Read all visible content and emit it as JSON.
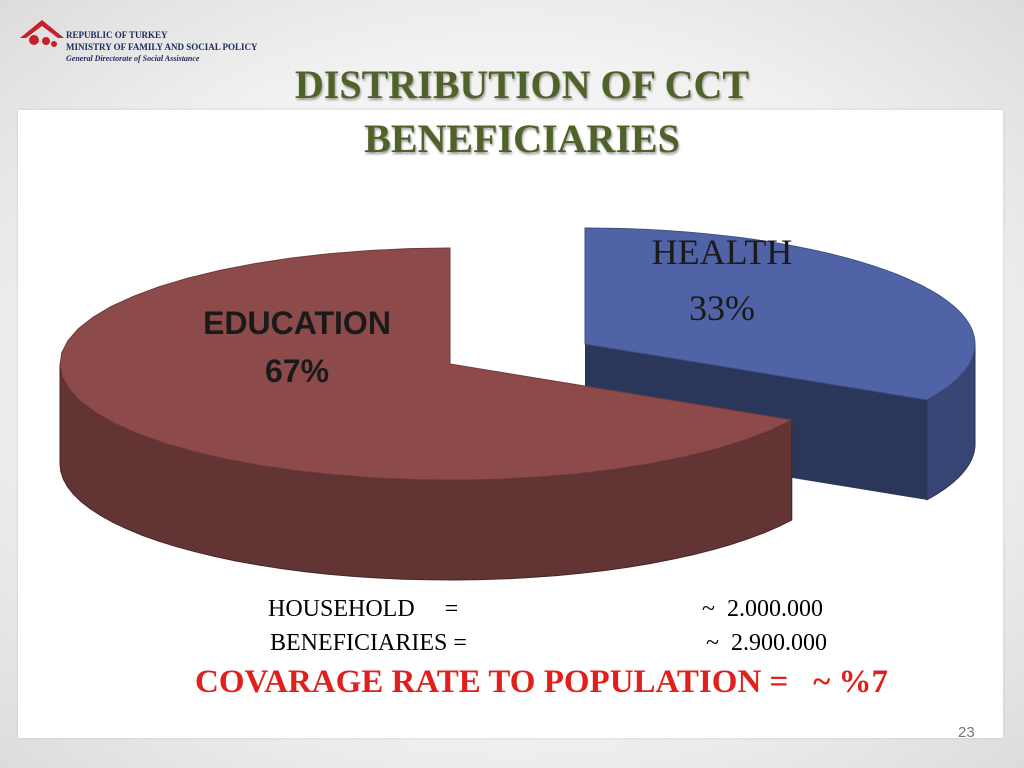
{
  "header": {
    "lines": [
      "REPUBLIC OF TURKEY",
      "MINISTRY OF FAMILY AND SOCIAL POLICY",
      "General Directorate of Social Assistance"
    ]
  },
  "chart_data": {
    "type": "pie3d",
    "title": "DISTRIBUTION OF CCT BENEFICIARIES",
    "categories": [
      "EDUCATION",
      "HEALTH"
    ],
    "values": [
      67,
      33
    ],
    "value_labels": [
      "67%",
      "33%"
    ],
    "colors": [
      "#8c4a4a",
      "#4f63a6"
    ]
  },
  "notes": [
    {
      "label": "HOUSEHOLD     =",
      "value": "~  2.000.000"
    },
    {
      "label": "BENEFICIARIES =",
      "value": "~  2.900.000"
    }
  ],
  "coverage": "COVARAGE RATE TO POPULATION =   ~ %7",
  "page_number": "23"
}
